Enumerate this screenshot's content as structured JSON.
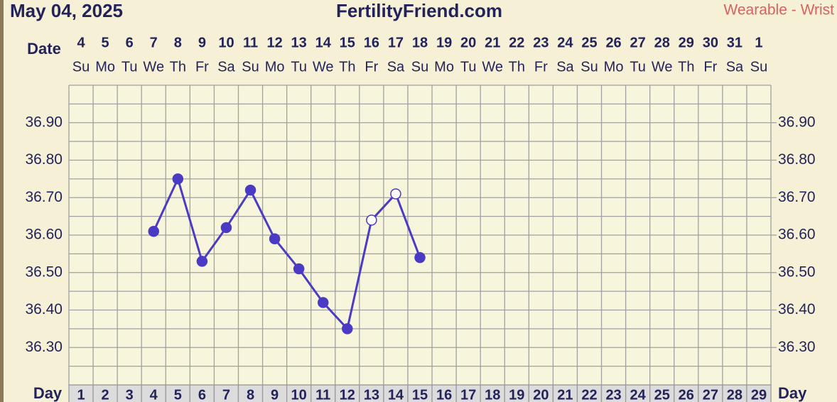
{
  "chart_data": {
    "type": "line",
    "title": "May 04, 2025",
    "site": "FertilityFriend.com",
    "source": "Wearable - Wrist",
    "date_label": "Date",
    "day_label": "Day",
    "categories": [
      "4",
      "5",
      "6",
      "7",
      "8",
      "9",
      "10",
      "11",
      "12",
      "13",
      "14",
      "15",
      "16",
      "17",
      "18",
      "19",
      "20",
      "21",
      "22",
      "23",
      "24",
      "25",
      "26",
      "27",
      "28",
      "29",
      "30",
      "31",
      "1"
    ],
    "weekdays": [
      "Su",
      "Mo",
      "Tu",
      "We",
      "Th",
      "Fr",
      "Sa",
      "Su",
      "Mo",
      "Tu",
      "We",
      "Th",
      "Fr",
      "Sa",
      "Su",
      "Mo",
      "Tu",
      "We",
      "Th",
      "Fr",
      "Sa",
      "Su",
      "Mo",
      "Tu",
      "We",
      "Th",
      "Fr",
      "Sa",
      "Su"
    ],
    "days": [
      "1",
      "2",
      "3",
      "4",
      "5",
      "6",
      "7",
      "8",
      "9",
      "10",
      "11",
      "12",
      "13",
      "14",
      "15",
      "16",
      "17",
      "18",
      "19",
      "20",
      "21",
      "22",
      "23",
      "24",
      "25",
      "26",
      "27",
      "28",
      "29"
    ],
    "series": [
      {
        "color": "#4b3bc4",
        "values": [
          null,
          null,
          null,
          36.61,
          36.75,
          36.53,
          36.62,
          36.72,
          36.59,
          36.51,
          36.42,
          36.35,
          36.64,
          36.71,
          36.54,
          null,
          null,
          null,
          null,
          null,
          null,
          null,
          null,
          null,
          null,
          null,
          null,
          null,
          null
        ],
        "marker_fills": [
          null,
          null,
          null,
          "#4b3bc4",
          "#4b3bc4",
          "#4b3bc4",
          "#4b3bc4",
          "#4b3bc4",
          "#4b3bc4",
          "#4b3bc4",
          "#4b3bc4",
          "#4b3bc4",
          "#ffffff",
          "#ffffff",
          "#4b3bc4",
          null,
          null,
          null,
          null,
          null,
          null,
          null,
          null,
          null,
          null,
          null,
          null,
          null,
          null
        ]
      }
    ],
    "ylim": [
      36.2,
      37.0
    ],
    "yticks": [
      {
        "value": 36.3,
        "label": "36.30"
      },
      {
        "value": 36.4,
        "label": "36.40"
      },
      {
        "value": 36.5,
        "label": "36.50"
      },
      {
        "value": 36.6,
        "label": "36.60"
      },
      {
        "value": 36.7,
        "label": "36.70"
      },
      {
        "value": 36.8,
        "label": "36.80"
      },
      {
        "value": 36.9,
        "label": "36.90"
      }
    ],
    "ygrid": [
      36.2,
      36.25,
      36.3,
      36.35,
      36.4,
      36.45,
      36.5,
      36.55,
      36.6,
      36.65,
      36.7,
      36.75,
      36.8,
      36.85,
      36.9,
      36.95,
      37.0
    ],
    "grid": true
  }
}
